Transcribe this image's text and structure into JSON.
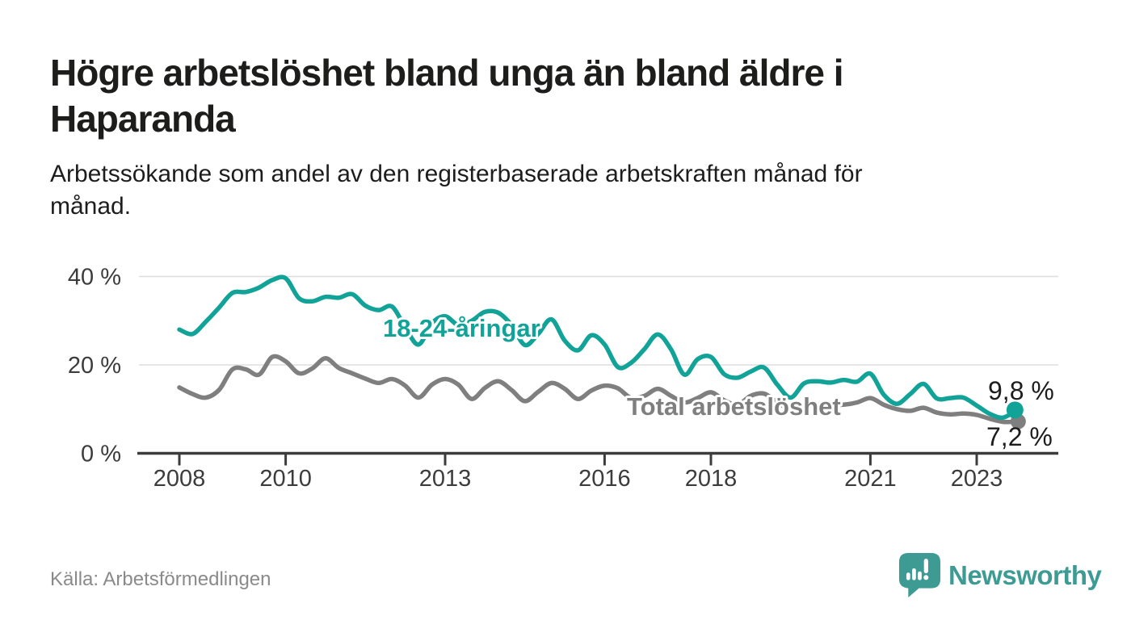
{
  "header": {
    "title_line1": "Högre arbetslöshet bland unga än bland äldre i",
    "title_line2": "Haparanda",
    "subtitle_line1": "Arbetssökande som andel av den registerbaserade arbetskraften månad för",
    "subtitle_line2": "månad."
  },
  "footer": {
    "source_text": "Källa: Arbetsförmedlingen",
    "brand_text": "Newsworthy"
  },
  "colors": {
    "youth_line": "#12a398",
    "total_line": "#7f7f7f",
    "axis": "#3c3c3c",
    "grid": "#dedede",
    "value_label": "#1d1d1d",
    "brand_teal": "#3d9b94"
  },
  "chart_data": {
    "type": "line",
    "title": "Högre arbetslöshet bland unga än bland äldre i Haparanda",
    "subtitle": "Arbetssökande som andel av den registerbaserade arbetskraften månad för månad.",
    "xlabel": "",
    "ylabel": "",
    "x_unit": "decimal year (monthly register data, sampled quarterly)",
    "xlim": [
      2007.2,
      2024.5
    ],
    "ylim": [
      0,
      42
    ],
    "grid": "horizontal",
    "legend": "inline-labels",
    "yticks": [
      {
        "v": 0,
        "label": "0 %"
      },
      {
        "v": 20,
        "label": "20 %"
      },
      {
        "v": 40,
        "label": "40 %"
      }
    ],
    "xticks": [
      {
        "v": 2008,
        "label": "2008"
      },
      {
        "v": 2010,
        "label": "2010"
      },
      {
        "v": 2013,
        "label": "2013"
      },
      {
        "v": 2016,
        "label": "2016"
      },
      {
        "v": 2018,
        "label": "2018"
      },
      {
        "v": 2021,
        "label": "2021"
      },
      {
        "v": 2023,
        "label": "2023"
      }
    ],
    "x": [
      2008.0,
      2008.25,
      2008.5,
      2008.75,
      2009.0,
      2009.25,
      2009.5,
      2009.75,
      2010.0,
      2010.25,
      2010.5,
      2010.75,
      2011.0,
      2011.25,
      2011.5,
      2011.75,
      2012.0,
      2012.25,
      2012.5,
      2012.75,
      2013.0,
      2013.25,
      2013.5,
      2013.75,
      2014.0,
      2014.25,
      2014.5,
      2014.75,
      2015.0,
      2015.25,
      2015.5,
      2015.75,
      2016.0,
      2016.25,
      2016.5,
      2016.75,
      2017.0,
      2017.25,
      2017.5,
      2017.75,
      2018.0,
      2018.25,
      2018.5,
      2018.75,
      2019.0,
      2019.25,
      2019.5,
      2019.75,
      2020.0,
      2020.25,
      2020.5,
      2020.75,
      2021.0,
      2021.25,
      2021.5,
      2021.75,
      2022.0,
      2022.25,
      2022.5,
      2022.75,
      2023.0,
      2023.25,
      2023.5,
      2023.75
    ],
    "series": [
      {
        "name": "18-24-åringar",
        "color": "#12a398",
        "end_label": "9,8 %",
        "end_value": 9.8,
        "values": [
          28.0,
          27.0,
          29.8,
          33.0,
          36.3,
          36.5,
          37.5,
          39.2,
          39.6,
          35.1,
          34.4,
          35.4,
          35.2,
          36.0,
          33.4,
          32.4,
          33.2,
          28.5,
          24.6,
          29.4,
          31.0,
          29.0,
          30.0,
          32.0,
          31.8,
          29.0,
          24.5,
          27.0,
          30.3,
          25.5,
          23.3,
          26.7,
          24.6,
          19.5,
          20.5,
          23.6,
          26.9,
          23.5,
          17.8,
          21.3,
          21.8,
          17.9,
          17.1,
          18.5,
          19.4,
          15.5,
          12.6,
          15.8,
          16.3,
          16.0,
          16.6,
          16.2,
          18.0,
          13.3,
          11.2,
          13.4,
          15.7,
          12.4,
          12.5,
          12.6,
          10.8,
          8.9,
          8.1,
          9.8
        ]
      },
      {
        "name": "Total arbetslöshet",
        "color": "#7f7f7f",
        "end_label": "7,2 %",
        "end_value": 7.2,
        "values": [
          14.9,
          13.4,
          12.6,
          14.4,
          19.0,
          19.0,
          17.8,
          21.8,
          20.8,
          18.1,
          19.2,
          21.5,
          19.3,
          18.1,
          16.9,
          15.9,
          16.8,
          15.3,
          12.6,
          15.5,
          16.8,
          15.5,
          12.3,
          14.8,
          16.3,
          14.3,
          11.8,
          13.9,
          15.9,
          14.6,
          12.3,
          14.2,
          15.3,
          14.7,
          12.5,
          13.0,
          14.6,
          13.0,
          11.5,
          12.5,
          13.8,
          12.0,
          11.0,
          13.0,
          13.5,
          11.5,
          10.0,
          10.5,
          11.0,
          11.0,
          11.0,
          11.5,
          12.5,
          11.0,
          10.0,
          9.6,
          10.3,
          9.2,
          8.8,
          9.0,
          8.7,
          7.8,
          7.1,
          7.2
        ]
      }
    ]
  }
}
